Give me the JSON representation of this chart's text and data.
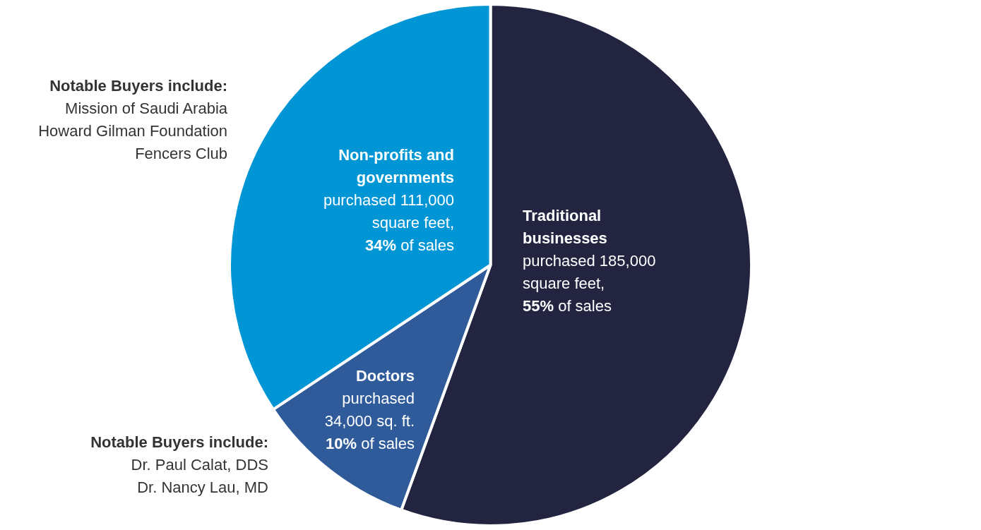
{
  "chart_data": {
    "type": "pie",
    "categories": [
      "Traditional businesses",
      "Doctors",
      "Non-profits and governments"
    ],
    "values": [
      55,
      10,
      34
    ],
    "colors": [
      "#232440",
      "#2f5b9a",
      "#0096d6"
    ],
    "value_labels": [
      "purchased 185,000\nsquare feet,\n55% of sales",
      "purchased\n34,000 sq. ft.\n10% of sales",
      "purchased 111,000\nsquare feet,\n34% of sales"
    ],
    "annotations": [
      "Notable Buyers include:\nMission of Saudi Arabia\nHoward Gilman Foundation\nFencers Club",
      "Notable Buyers include:\nDr. Paul Calat, DDS\nDr. Nancy Lau, MD"
    ],
    "legend": false
  }
}
